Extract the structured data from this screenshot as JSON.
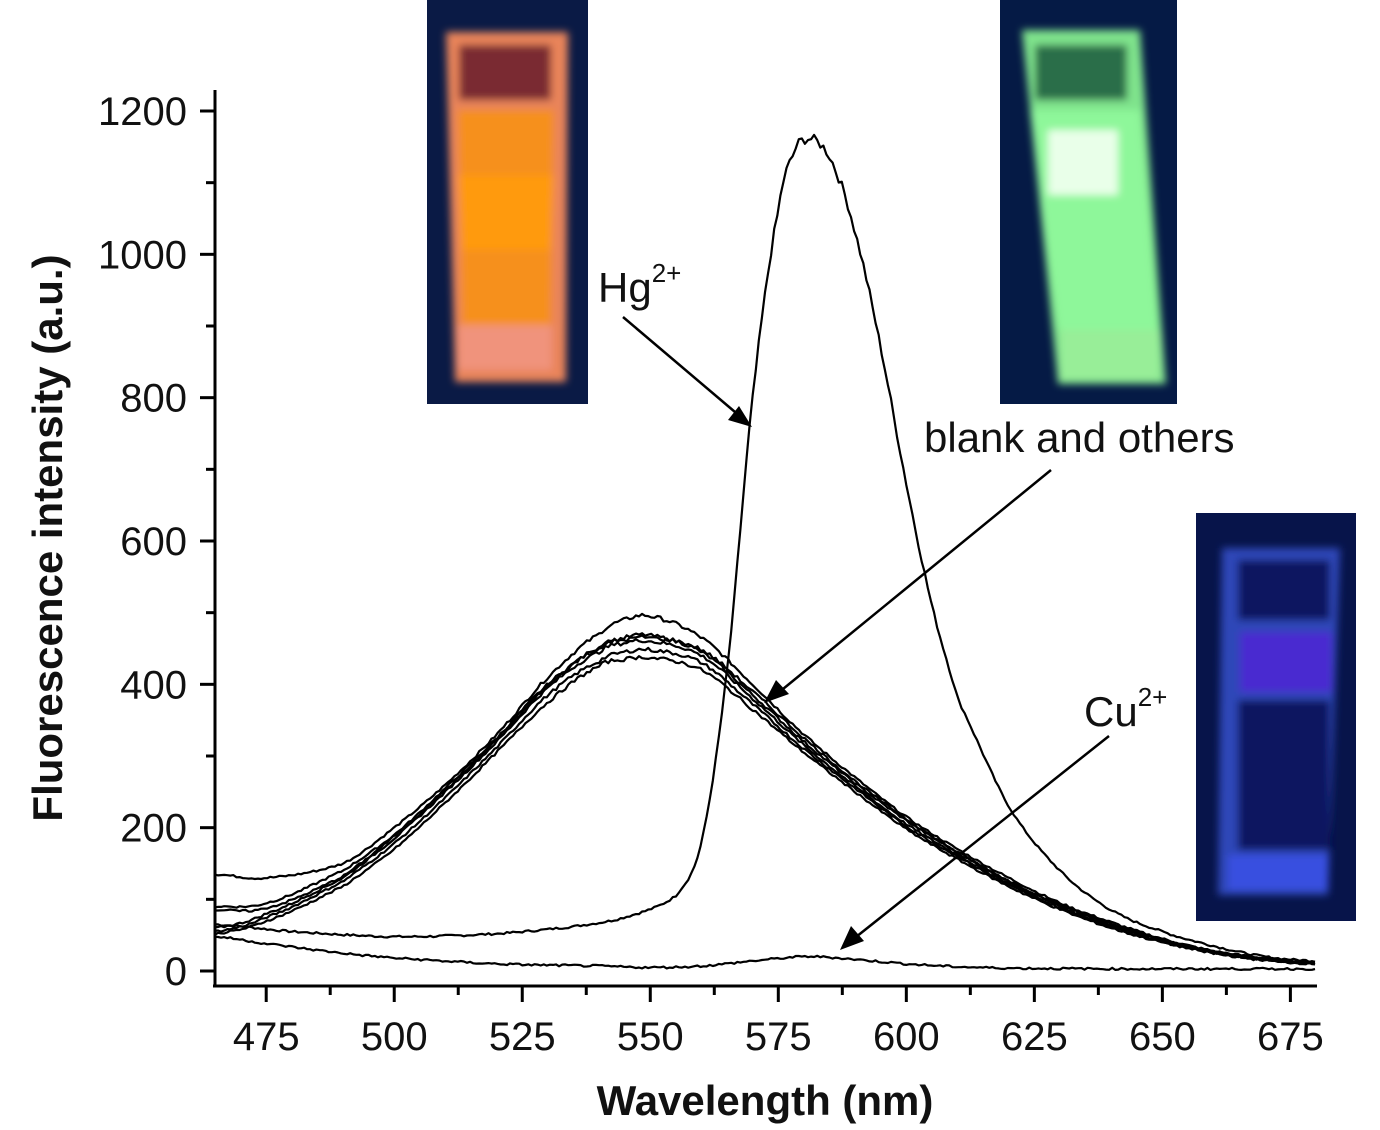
{
  "chart_data": {
    "type": "line",
    "title": "",
    "xlabel": "Wavelength (nm)",
    "ylabel": "Fluorescence intensity (a.u.)",
    "xlim": [
      465,
      680
    ],
    "ylim": [
      0,
      1200
    ],
    "x_ticks": [
      475,
      500,
      525,
      550,
      575,
      600,
      625,
      650,
      675
    ],
    "x_tick_labels": [
      "475",
      "500",
      "525",
      "550",
      "575",
      "600",
      "625",
      "650",
      "675"
    ],
    "x_minor_step": 12.5,
    "y_ticks": [
      0,
      200,
      400,
      600,
      800,
      1000,
      1200
    ],
    "y_tick_labels": [
      "0",
      "200",
      "400",
      "600",
      "800",
      "1000",
      "1200"
    ],
    "y_minor_step": 100,
    "grid": false,
    "legend": "none",
    "line_color": "#000000",
    "series": [
      {
        "name": "Hg2+",
        "x": [
          465,
          480,
          500,
          520,
          535,
          545,
          555,
          560,
          565,
          570,
          575,
          578,
          580,
          583,
          586,
          590,
          595,
          600,
          605,
          610,
          620,
          630,
          640,
          650,
          660,
          670,
          680
        ],
        "y": [
          65,
          55,
          48,
          52,
          62,
          75,
          105,
          180,
          420,
          800,
          1060,
          1140,
          1160,
          1155,
          1120,
          1030,
          870,
          680,
          510,
          380,
          230,
          140,
          85,
          55,
          35,
          20,
          14
        ]
      },
      {
        "name": "blank and others (1)",
        "x": [
          465,
          475,
          490,
          500,
          510,
          520,
          530,
          540,
          545,
          550,
          560,
          570,
          580,
          590,
          600,
          610,
          620,
          630,
          640,
          650,
          660,
          670,
          680
        ],
        "y": [
          135,
          130,
          150,
          200,
          260,
          330,
          410,
          470,
          490,
          495,
          465,
          400,
          330,
          270,
          215,
          170,
          130,
          95,
          68,
          45,
          28,
          18,
          12
        ]
      },
      {
        "name": "blank and others (2)",
        "x": [
          465,
          475,
          490,
          500,
          510,
          520,
          530,
          540,
          545,
          550,
          560,
          570,
          580,
          590,
          600,
          610,
          620,
          630,
          640,
          650,
          660,
          670,
          680
        ],
        "y": [
          90,
          95,
          140,
          190,
          255,
          325,
          400,
          450,
          465,
          468,
          445,
          385,
          320,
          262,
          210,
          165,
          125,
          92,
          65,
          43,
          27,
          17,
          11
        ]
      },
      {
        "name": "blank and others (3)",
        "x": [
          465,
          475,
          490,
          500,
          510,
          520,
          530,
          540,
          545,
          550,
          560,
          570,
          580,
          590,
          600,
          610,
          620,
          630,
          640,
          650,
          660,
          670,
          680
        ],
        "y": [
          60,
          80,
          130,
          185,
          250,
          320,
          395,
          445,
          458,
          460,
          440,
          380,
          315,
          258,
          205,
          162,
          122,
          90,
          63,
          42,
          26,
          16,
          11
        ]
      },
      {
        "name": "blank and others (4)",
        "x": [
          465,
          475,
          490,
          500,
          510,
          520,
          530,
          540,
          545,
          550,
          560,
          570,
          580,
          590,
          600,
          610,
          620,
          630,
          640,
          650,
          660,
          670,
          680
        ],
        "y": [
          55,
          75,
          125,
          178,
          242,
          312,
          385,
          432,
          445,
          448,
          430,
          372,
          310,
          255,
          202,
          160,
          120,
          88,
          62,
          41,
          25,
          16,
          11
        ]
      },
      {
        "name": "blank and others (5)",
        "x": [
          465,
          475,
          490,
          500,
          510,
          520,
          530,
          540,
          545,
          550,
          560,
          570,
          580,
          590,
          600,
          610,
          620,
          630,
          640,
          650,
          660,
          670,
          680
        ],
        "y": [
          52,
          70,
          118,
          170,
          235,
          305,
          375,
          425,
          435,
          437,
          420,
          365,
          305,
          250,
          198,
          156,
          118,
          86,
          60,
          40,
          25,
          15,
          10
        ]
      },
      {
        "name": "blank and others (6)",
        "x": [
          465,
          475,
          490,
          500,
          510,
          520,
          530,
          540,
          545,
          550,
          560,
          570,
          580,
          590,
          600,
          610,
          620,
          630,
          640,
          650,
          660,
          670,
          680
        ],
        "y": [
          85,
          88,
          132,
          188,
          252,
          322,
          398,
          452,
          462,
          465,
          448,
          390,
          325,
          265,
          212,
          166,
          126,
          93,
          66,
          44,
          27,
          17,
          11
        ]
      },
      {
        "name": "Cu2+",
        "x": [
          465,
          475,
          490,
          500,
          520,
          540,
          550,
          560,
          570,
          580,
          585,
          590,
          600,
          610,
          620,
          640,
          660,
          680
        ],
        "y": [
          48,
          38,
          25,
          18,
          10,
          7,
          5,
          7,
          14,
          20,
          19,
          16,
          10,
          6,
          4,
          3,
          3,
          3
        ]
      }
    ],
    "annotations": [
      {
        "text": "Hg",
        "superscript": "2+",
        "arrow_to": [
          569,
          760
        ]
      },
      {
        "text": "blank and others",
        "superscript": "",
        "arrow_to": [
          573,
          385
        ]
      },
      {
        "text": "Cu",
        "superscript": "2+",
        "arrow_to": [
          585,
          28
        ]
      }
    ],
    "insets": [
      {
        "label": "orange fluorescent cuvette photo",
        "glow": "#ff9a1a"
      },
      {
        "label": "green fluorescent cuvette photo",
        "glow": "#86f58a"
      },
      {
        "label": "blue cuvette photo",
        "glow": "#3a4fd8"
      }
    ]
  }
}
